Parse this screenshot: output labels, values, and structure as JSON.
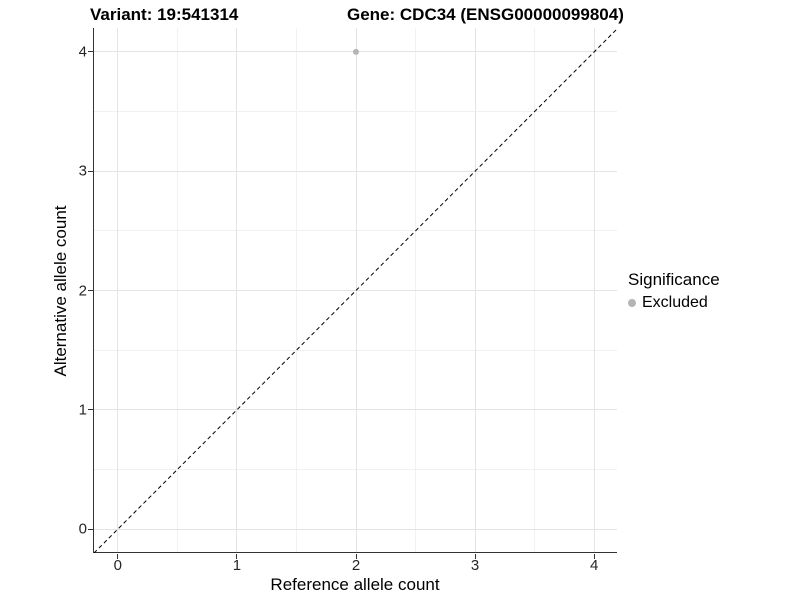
{
  "title": {
    "variant": "Variant: 19:541314",
    "gene": "Gene: CDC34 (ENSG00000099804)"
  },
  "legend": {
    "title": "Significance",
    "items": [
      {
        "label": "Excluded",
        "color": "#b5b5b5"
      }
    ]
  },
  "colors": {
    "axis_line": "#333333",
    "grid_major": "#e4e4e4",
    "grid_minor": "#f1f1f1",
    "reference_line": "#000000",
    "point": "#b5b5b5",
    "background": "#ffffff"
  },
  "chart_data": {
    "type": "scatter",
    "title": "Variant: 19:541314   Gene: CDC34 (ENSG00000099804)",
    "xlabel": "Reference allele count",
    "ylabel": "Alternative allele count",
    "xlim": [
      -0.2,
      4.2
    ],
    "ylim": [
      -0.2,
      4.2
    ],
    "x_ticks": [
      0,
      1,
      2,
      3,
      4
    ],
    "y_ticks": [
      0,
      1,
      2,
      3,
      4
    ],
    "minor_ticks": [
      0.5,
      1.5,
      2.5,
      3.5
    ],
    "grid": "major+minor",
    "legend_position": "right",
    "series": [
      {
        "name": "Excluded",
        "color": "#b5b5b5",
        "points": [
          {
            "x": 2,
            "y": 4
          }
        ]
      }
    ],
    "reference_line": {
      "type": "identity",
      "style": "dashed",
      "from": [
        -0.2,
        -0.2
      ],
      "to": [
        4.2,
        4.2
      ]
    }
  }
}
